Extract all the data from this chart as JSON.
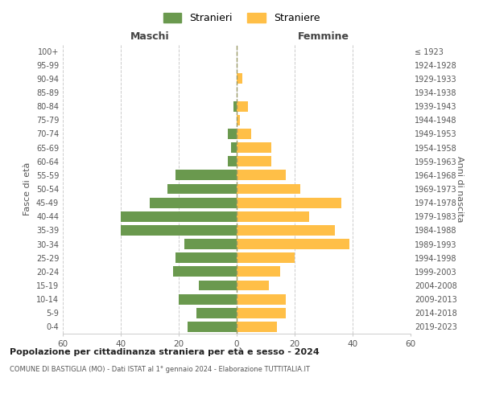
{
  "age_groups": [
    "0-4",
    "5-9",
    "10-14",
    "15-19",
    "20-24",
    "25-29",
    "30-34",
    "35-39",
    "40-44",
    "45-49",
    "50-54",
    "55-59",
    "60-64",
    "65-69",
    "70-74",
    "75-79",
    "80-84",
    "85-89",
    "90-94",
    "95-99",
    "100+"
  ],
  "birth_years": [
    "2019-2023",
    "2014-2018",
    "2009-2013",
    "2004-2008",
    "1999-2003",
    "1994-1998",
    "1989-1993",
    "1984-1988",
    "1979-1983",
    "1974-1978",
    "1969-1973",
    "1964-1968",
    "1959-1963",
    "1954-1958",
    "1949-1953",
    "1944-1948",
    "1939-1943",
    "1934-1938",
    "1929-1933",
    "1924-1928",
    "≤ 1923"
  ],
  "males": [
    17,
    14,
    20,
    13,
    22,
    21,
    18,
    40,
    40,
    30,
    24,
    21,
    3,
    2,
    3,
    0,
    1,
    0,
    0,
    0,
    0
  ],
  "females": [
    14,
    17,
    17,
    11,
    15,
    20,
    39,
    34,
    25,
    36,
    22,
    17,
    12,
    12,
    5,
    1,
    4,
    0,
    2,
    0,
    0
  ],
  "male_color": "#6a994e",
  "female_color": "#ffbf47",
  "title_main": "Popolazione per cittadinanza straniera per età e sesso - 2024",
  "title_sub": "COMUNE DI BASTIGLIA (MO) - Dati ISTAT al 1° gennaio 2024 - Elaborazione TUTTITALIA.IT",
  "ylabel_left": "Fasce di età",
  "ylabel_right": "Anni di nascita",
  "maschi_label": "Maschi",
  "femmine_label": "Femmine",
  "legend_stranieri": "Stranieri",
  "legend_straniere": "Straniere",
  "xlim": 60,
  "background_color": "#ffffff",
  "grid_color": "#cccccc"
}
